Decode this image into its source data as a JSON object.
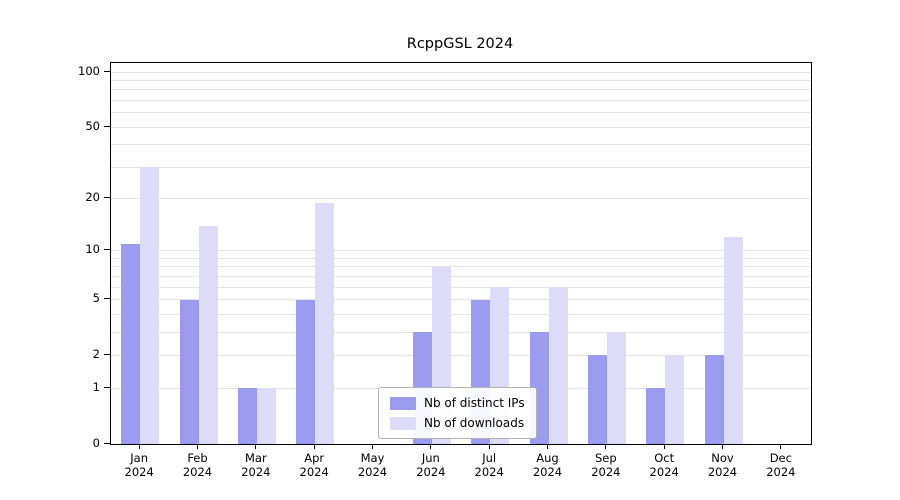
{
  "chart_data": {
    "type": "bar",
    "title": "RcppGSL 2024",
    "categories": [
      "Jan",
      "Feb",
      "Mar",
      "Apr",
      "May",
      "Jun",
      "Jul",
      "Aug",
      "Sep",
      "Oct",
      "Nov",
      "Dec"
    ],
    "year": "2024",
    "series": [
      {
        "name": "Nb of distinct IPs",
        "color": "#9b9bef",
        "values": [
          11,
          5,
          1,
          5,
          0,
          3,
          5,
          3,
          2,
          1,
          2,
          0
        ]
      },
      {
        "name": "Nb of downloads",
        "color": "#dcdcf9",
        "values": [
          30,
          14,
          1,
          19,
          0,
          8,
          6,
          6,
          3,
          2,
          12,
          0
        ]
      }
    ],
    "yticks": [
      0,
      1,
      2,
      5,
      10,
      20,
      50,
      100
    ],
    "ylim": [
      0,
      100
    ],
    "scale": "log1p",
    "grid": "horizontal log minor gridlines (1-9, 10-90, 100)",
    "legend_position": "inside-bottom-center",
    "xlabel": "",
    "ylabel": ""
  }
}
